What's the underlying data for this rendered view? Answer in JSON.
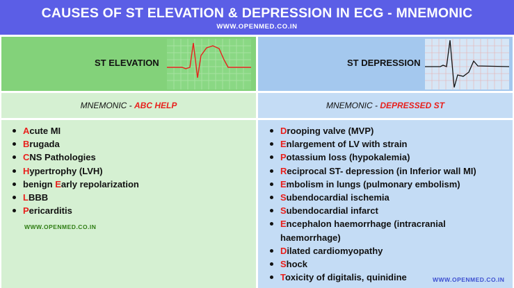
{
  "banner": {
    "title": "CAUSES OF ST ELEVATION & DEPRESSION IN ECG - MNEMONIC",
    "url": "WWW.OPENMED.CO.IN",
    "color": "#5b5ee6"
  },
  "elevation": {
    "header": "ST ELEVATION",
    "ecg_trace_icon": "ecg-st-elevation-trace",
    "mnemonic_label": "MNEMONIC -",
    "mnemonic_word": "ABC HELP",
    "items": [
      {
        "letter": "A",
        "rest": "cute MI"
      },
      {
        "letter": "B",
        "rest": "rugada"
      },
      {
        "letter": "C",
        "rest": "NS Pathologies"
      },
      {
        "letter": "H",
        "rest": "ypertrophy (LVH)"
      },
      {
        "prefix": "benign ",
        "letter": "E",
        "rest": "arly repolarization"
      },
      {
        "letter": "L",
        "rest": "BBB"
      },
      {
        "letter": "P",
        "rest": "ericarditis"
      }
    ],
    "url": "WWW.OPENMED.CO.IN",
    "colors": {
      "header": "#83d27a",
      "body": "#d5f0d2"
    }
  },
  "depression": {
    "header": "ST DEPRESSION",
    "ecg_trace_icon": "ecg-st-depression-trace",
    "mnemonic_label": "MNEMONIC -",
    "mnemonic_word": "DEPRESSED ST",
    "items": [
      {
        "letter": "D",
        "rest": "rooping valve (MVP)"
      },
      {
        "letter": "E",
        "rest": "nlargement of LV with strain"
      },
      {
        "letter": "P",
        "rest": "otassium loss (hypokalemia)"
      },
      {
        "letter": "R",
        "rest": "eciprocal ST- depression (in Inferior wall MI)"
      },
      {
        "letter": "E",
        "rest": "mbolism in lungs (pulmonary embolism)"
      },
      {
        "letter": "S",
        "rest": "ubendocardial ischemia"
      },
      {
        "letter": "S",
        "rest": "ubendocardial infarct"
      },
      {
        "letter": "E",
        "rest": "ncephalon haemorrhage (intracranial haemorrhage)"
      },
      {
        "letter": "D",
        "rest": "ilated cardiomyopathy"
      },
      {
        "letter": "S",
        "rest": "hock"
      },
      {
        "letter": "T",
        "rest": "oxicity of digitalis, quinidine"
      }
    ],
    "url": "WWW.OPENMED.CO.IN",
    "colors": {
      "header": "#a4c8ee",
      "body": "#c4dcf5"
    }
  },
  "accent_color": "#e8201c"
}
